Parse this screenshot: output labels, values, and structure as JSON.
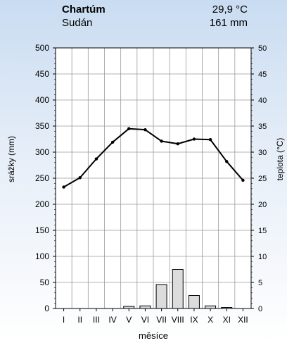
{
  "header": {
    "station": "Chartúm",
    "country": "Sudán",
    "avg_temp": "29,9 °C",
    "annual_precip": "161 mm"
  },
  "chart_data": {
    "type": "bar+line",
    "categories": [
      "I",
      "II",
      "III",
      "IV",
      "V",
      "VI",
      "VII",
      "VIII",
      "IX",
      "X",
      "XI",
      "XII"
    ],
    "xlabel": "měsíce",
    "ylabel_left": "srážky (mm)",
    "ylabel_right": "teplota (°C)",
    "ylim_left": [
      0,
      500
    ],
    "ylim_right": [
      0,
      50
    ],
    "yticks_left": [
      0,
      50,
      100,
      150,
      200,
      250,
      300,
      350,
      400,
      450,
      500
    ],
    "yticks_right": [
      0,
      5,
      10,
      15,
      20,
      25,
      30,
      35,
      40,
      45,
      50
    ],
    "grid": true,
    "series": [
      {
        "kind": "bar",
        "axis": "left",
        "values": [
          0,
          0,
          0,
          0,
          4,
          5,
          46,
          75,
          25,
          5,
          2,
          0
        ]
      },
      {
        "kind": "line",
        "axis": "right",
        "values": [
          23.3,
          25.1,
          28.7,
          31.9,
          34.5,
          34.3,
          32.1,
          31.6,
          32.5,
          32.4,
          28.2,
          24.6
        ]
      }
    ],
    "colors": {
      "bar_fill": "#dcdcdc",
      "bar_stroke": "#000000",
      "line": "#000000",
      "grid": "#9a9a9a",
      "plot_bg": "#ffffff"
    }
  }
}
